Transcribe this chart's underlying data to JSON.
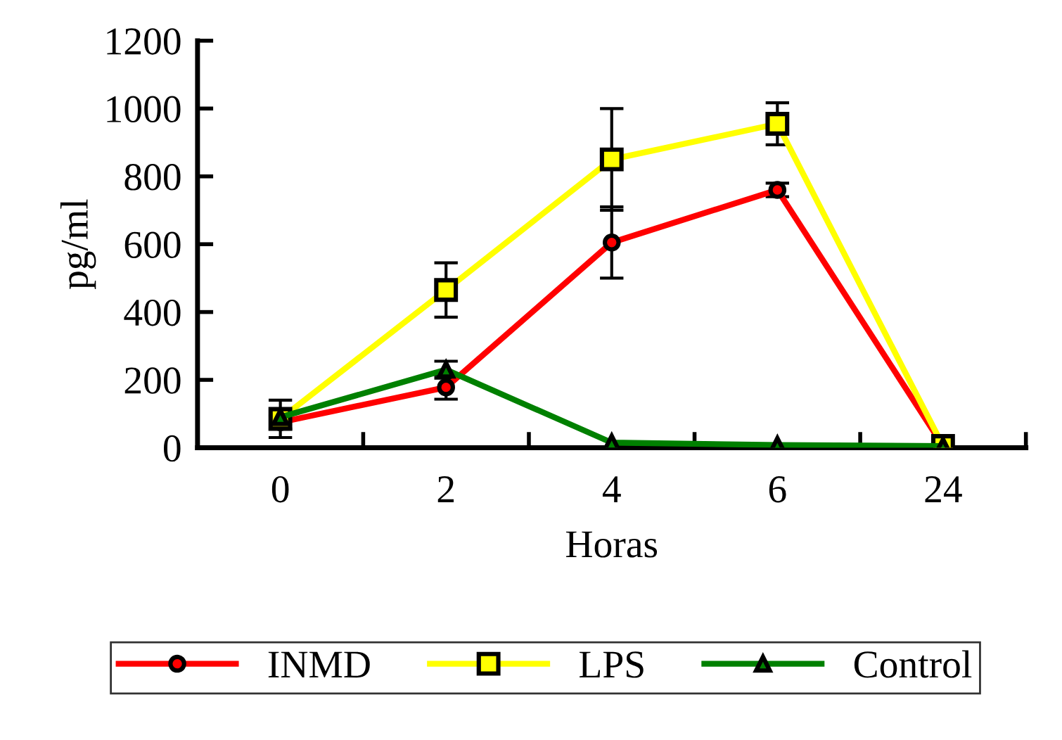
{
  "chart_data": {
    "type": "line",
    "xlabel": "Horas",
    "ylabel": "pg/ml",
    "categories": [
      "0",
      "2",
      "4",
      "6",
      "24"
    ],
    "ylim": [
      0,
      1200
    ],
    "yticks": [
      0,
      200,
      400,
      600,
      800,
      1000,
      1200
    ],
    "grid": false,
    "legend": "bottom",
    "series": [
      {
        "name": "INMD",
        "color": "#ff0000",
        "marker": "circle",
        "values": [
          75,
          178,
          605,
          760,
          5
        ],
        "errors": [
          20,
          35,
          105,
          20,
          null
        ]
      },
      {
        "name": "LPS",
        "color": "#ffff00",
        "marker": "square",
        "values": [
          85,
          465,
          850,
          955,
          5
        ],
        "errors": [
          55,
          80,
          150,
          62,
          null
        ]
      },
      {
        "name": "Control",
        "color": "#008000",
        "marker": "triangle",
        "values": [
          90,
          230,
          15,
          8,
          5
        ],
        "errors": [
          null,
          25,
          null,
          null,
          null
        ]
      }
    ]
  }
}
